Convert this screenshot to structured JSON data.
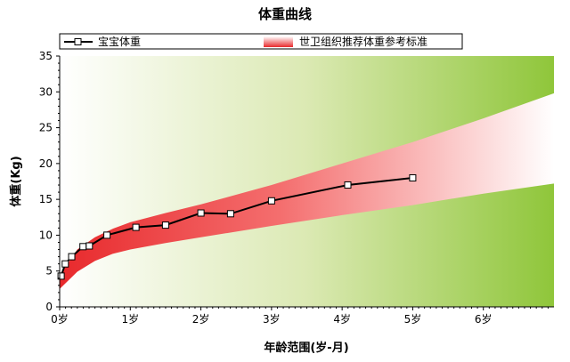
{
  "chart_data": {
    "type": "line",
    "title": "体重曲线",
    "xlabel": "年龄范围(岁-月)",
    "ylabel": "体重(Kg)",
    "xlim": [
      0,
      7
    ],
    "ylim": [
      0,
      35
    ],
    "x_ticks": [
      0,
      1,
      2,
      3,
      4,
      5,
      6
    ],
    "x_tick_labels": [
      "0岁",
      "1岁",
      "2岁",
      "3岁",
      "4岁",
      "5岁",
      "6岁"
    ],
    "y_ticks": [
      0,
      5,
      10,
      15,
      20,
      25,
      30,
      35
    ],
    "y_tick_labels": [
      "0",
      "5",
      "10",
      "15",
      "20",
      "25",
      "30",
      "35"
    ],
    "legend_position": "top",
    "series": [
      {
        "name": "宝宝体重",
        "type": "line",
        "color": "#000000",
        "x": [
          0.02,
          0.08,
          0.17,
          0.33,
          0.42,
          0.67,
          1.08,
          1.5,
          2.0,
          2.42,
          3.0,
          4.08,
          5.0
        ],
        "y": [
          4.3,
          6.0,
          7.0,
          8.4,
          8.5,
          10.0,
          11.1,
          11.4,
          13.1,
          13.0,
          14.8,
          17.0,
          18.0
        ]
      },
      {
        "name": "世卫组织推荐体重参考标准",
        "type": "band",
        "color": "#e8292c",
        "x": [
          0,
          0.25,
          0.5,
          0.75,
          1,
          1.5,
          2,
          3,
          4,
          5,
          6,
          7
        ],
        "lower": [
          2.5,
          4.9,
          6.4,
          7.4,
          8.0,
          8.9,
          9.7,
          11.3,
          12.8,
          14.2,
          15.8,
          17.2
        ],
        "upper": [
          4.4,
          8.0,
          9.7,
          10.9,
          11.8,
          13.1,
          14.3,
          17.0,
          20.0,
          23.0,
          26.3,
          29.8
        ]
      }
    ]
  }
}
